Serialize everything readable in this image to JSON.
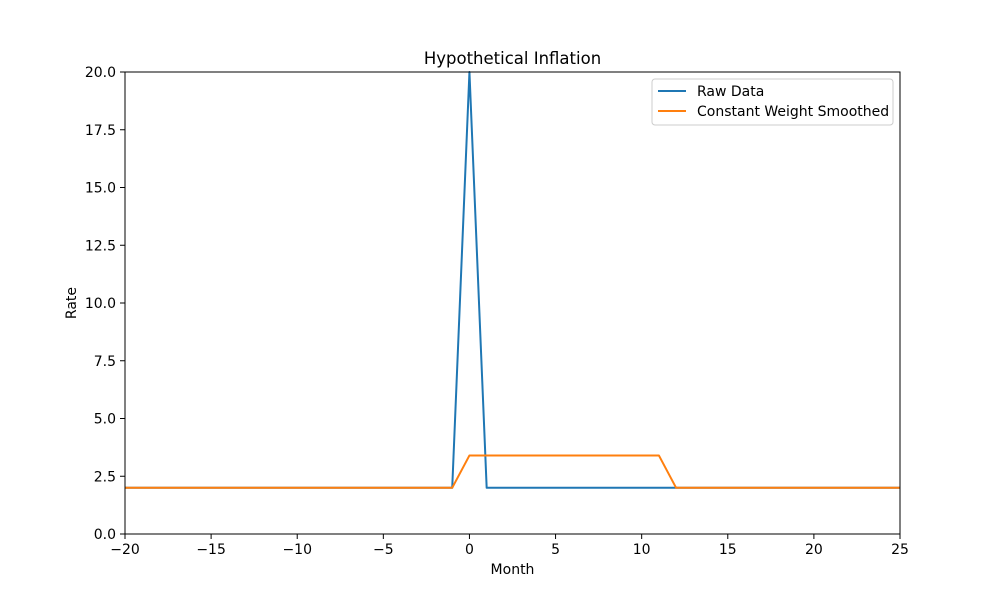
{
  "chart_data": {
    "type": "line",
    "title": "Hypothetical Inflation",
    "xlabel": "Month",
    "ylabel": "Rate",
    "xlim": [
      -20,
      25
    ],
    "ylim": [
      0,
      20
    ],
    "xticks": [
      -20,
      -15,
      -10,
      -5,
      0,
      5,
      10,
      15,
      20,
      25
    ],
    "xtick_labels": [
      "−20",
      "−15",
      "−10",
      "−5",
      "0",
      "5",
      "10",
      "15",
      "20",
      "25"
    ],
    "yticks": [
      0,
      2.5,
      5,
      7.5,
      10,
      12.5,
      15,
      17.5,
      20
    ],
    "ytick_labels": [
      "0.0",
      "2.5",
      "5.0",
      "7.5",
      "10.0",
      "12.5",
      "15.0",
      "17.5",
      "20.0"
    ],
    "grid": false,
    "legend_position": "top-right",
    "series": [
      {
        "name": "Raw Data",
        "color": "#1f77b4",
        "x": [
          -20,
          -19,
          -18,
          -17,
          -16,
          -15,
          -14,
          -13,
          -12,
          -11,
          -10,
          -9,
          -8,
          -7,
          -6,
          -5,
          -4,
          -3,
          -2,
          -1,
          0,
          1,
          2,
          3,
          4,
          5,
          6,
          7,
          8,
          9,
          10,
          11,
          12,
          13,
          14,
          15,
          16,
          17,
          18,
          19,
          20,
          21,
          22,
          23,
          24,
          25
        ],
        "y": [
          2,
          2,
          2,
          2,
          2,
          2,
          2,
          2,
          2,
          2,
          2,
          2,
          2,
          2,
          2,
          2,
          2,
          2,
          2,
          2,
          20,
          2,
          2,
          2,
          2,
          2,
          2,
          2,
          2,
          2,
          2,
          2,
          2,
          2,
          2,
          2,
          2,
          2,
          2,
          2,
          2,
          2,
          2,
          2,
          2,
          2
        ]
      },
      {
        "name": "Constant Weight Smoothed",
        "color": "#ff7f0e",
        "x": [
          -20,
          -19,
          -18,
          -17,
          -16,
          -15,
          -14,
          -13,
          -12,
          -11,
          -10,
          -9,
          -8,
          -7,
          -6,
          -5,
          -4,
          -3,
          -2,
          -1,
          0,
          1,
          2,
          3,
          4,
          5,
          6,
          7,
          8,
          9,
          10,
          11,
          12,
          13,
          14,
          15,
          16,
          17,
          18,
          19,
          20,
          21,
          22,
          23,
          24,
          25
        ],
        "y": [
          2,
          2,
          2,
          2,
          2,
          2,
          2,
          2,
          2,
          2,
          2,
          2,
          2,
          2,
          2,
          2,
          2,
          2,
          2,
          2,
          3.4,
          3.4,
          3.4,
          3.4,
          3.4,
          3.4,
          3.4,
          3.4,
          3.4,
          3.4,
          3.4,
          3.4,
          2,
          2,
          2,
          2,
          2,
          2,
          2,
          2,
          2,
          2,
          2,
          2,
          2,
          2
        ]
      }
    ]
  }
}
